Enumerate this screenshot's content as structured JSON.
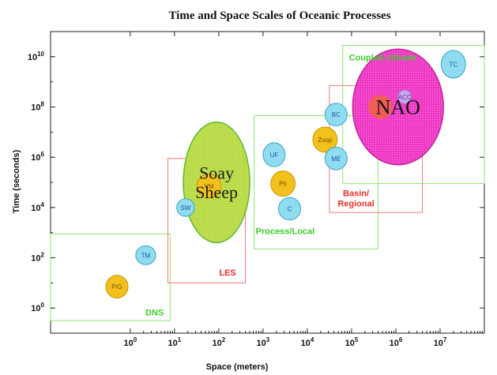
{
  "chart_data": {
    "type": "scatter",
    "title": "Time and Space Scales of Oceanic Processes",
    "xlabel": "Space (meters)",
    "ylabel": "Time (seconds)",
    "xscale": "log",
    "yscale": "log",
    "xlim_log10": [
      -1.8,
      8.0
    ],
    "ylim_log10": [
      -1.0,
      11.0
    ],
    "x_ticks": [
      {
        "exp": 0,
        "base": "10",
        "sup": "0"
      },
      {
        "exp": 1,
        "base": "10",
        "sup": "1"
      },
      {
        "exp": 2,
        "base": "10",
        "sup": "2"
      },
      {
        "exp": 3,
        "base": "10",
        "sup": "3"
      },
      {
        "exp": 4,
        "base": "10",
        "sup": "4"
      },
      {
        "exp": 5,
        "base": "10",
        "sup": "5"
      },
      {
        "exp": 6,
        "base": "10",
        "sup": "6"
      },
      {
        "exp": 7,
        "base": "10",
        "sup": "7"
      }
    ],
    "y_ticks": [
      {
        "exp": 0,
        "base": "10",
        "sup": "0"
      },
      {
        "exp": 2,
        "base": "10",
        "sup": "2"
      },
      {
        "exp": 4,
        "base": "10",
        "sup": "4"
      },
      {
        "exp": 6,
        "base": "10",
        "sup": "6"
      },
      {
        "exp": 8,
        "base": "10",
        "sup": "8"
      },
      {
        "exp": 10,
        "base": "10",
        "sup": "10"
      }
    ],
    "regions": [
      {
        "label": "DNS",
        "color": "#8fe36e",
        "x0": -1.8,
        "x1": 0.9,
        "y0": -0.5,
        "y1": 2.95,
        "label_x": 0.55,
        "label_y": -0.3
      },
      {
        "label": "LES",
        "color": "#f27a7a",
        "x0": 0.85,
        "x1": 2.6,
        "y0": 1.0,
        "y1": 5.95,
        "label_x": 2.2,
        "label_y": 1.3
      },
      {
        "label": "Process/Local",
        "color": "#8fe36e",
        "x0": 2.8,
        "x1": 5.6,
        "y0": 2.35,
        "y1": 7.65,
        "label_x": 3.5,
        "label_y": 2.95
      },
      {
        "label": "Basin/\nRegional",
        "color": "#f27a7a",
        "x0": 4.5,
        "x1": 6.6,
        "y0": 3.8,
        "y1": 8.85,
        "label_x": 5.1,
        "label_y": 4.45
      },
      {
        "label": "Coupled climate",
        "color": "#8fe36e",
        "x0": 4.8,
        "x1": 8.0,
        "y0": 4.95,
        "y1": 10.45,
        "label_x": 5.7,
        "label_y": 9.85
      }
    ],
    "processes": [
      {
        "label": "P/G",
        "x": -0.3,
        "y": 0.85,
        "w": 0.5,
        "h": 0.9,
        "color": "#f2c11c",
        "stroke": "#c99600",
        "text": "#7a4d00"
      },
      {
        "label": "TM",
        "x": 0.35,
        "y": 2.1,
        "w": 0.45,
        "h": 0.75,
        "color": "#8fdcf0",
        "stroke": "#3aa4c6",
        "text": "#1d55a8"
      },
      {
        "label": "SW",
        "x": 1.25,
        "y": 4.0,
        "w": 0.4,
        "h": 0.7,
        "color": "#8fdcf0",
        "stroke": "#3aa4c6",
        "text": "#1d55a8"
      },
      {
        "label": "VM",
        "x": 1.78,
        "y": 4.85,
        "w": 0.55,
        "h": 0.95,
        "color": "#f2c11c",
        "stroke": "#c99600",
        "text": "#7a4d00"
      },
      {
        "label": "UF",
        "x": 3.25,
        "y": 6.1,
        "w": 0.5,
        "h": 0.95,
        "color": "#8fdcf0",
        "stroke": "#3aa4c6",
        "text": "#1d55a8"
      },
      {
        "label": "Ph",
        "x": 3.45,
        "y": 4.95,
        "w": 0.55,
        "h": 1.0,
        "color": "#f2c11c",
        "stroke": "#c99600",
        "text": "#7a4d00"
      },
      {
        "label": "C",
        "x": 3.6,
        "y": 3.95,
        "w": 0.5,
        "h": 0.9,
        "color": "#8fdcf0",
        "stroke": "#3aa4c6",
        "text": "#1d55a8"
      },
      {
        "label": "Zoop",
        "x": 4.4,
        "y": 6.7,
        "w": 0.55,
        "h": 1.0,
        "color": "#f2c11c",
        "stroke": "#c99600",
        "text": "#7a4d00"
      },
      {
        "label": "BC",
        "x": 4.65,
        "y": 7.7,
        "w": 0.5,
        "h": 0.9,
        "color": "#8fdcf0",
        "stroke": "#3aa4c6",
        "text": "#1d55a8"
      },
      {
        "label": "ME",
        "x": 4.65,
        "y": 5.95,
        "w": 0.5,
        "h": 0.9,
        "color": "#8fdcf0",
        "stroke": "#3aa4c6",
        "text": "#1d55a8"
      },
      {
        "label": "TC",
        "x": 7.3,
        "y": 9.7,
        "w": 0.55,
        "h": 1.1,
        "color": "#8fdcf0",
        "stroke": "#3aa4c6",
        "text": "#1d55a8"
      },
      {
        "label": "ACC",
        "x": 6.2,
        "y": 8.4,
        "w": 0.3,
        "h": 0.55,
        "color": "#c9a6f0",
        "stroke": "#9a78c8",
        "text": "#5a3c90"
      }
    ],
    "highlights": [
      {
        "label": "Soay\nSheep",
        "x": 1.95,
        "y": 5.0,
        "w": 1.5,
        "h": 4.8,
        "fill": "#b5d93e",
        "stroke": "#57b52a",
        "text": "#1a1a1a",
        "font": 22
      },
      {
        "label": "NAO",
        "x": 6.05,
        "y": 8.0,
        "w": 2.05,
        "h": 4.6,
        "fill": "#ee2ec2",
        "stroke": "#c01a96",
        "text": "#111111",
        "font": 26
      }
    ],
    "nao_inner": {
      "x": 5.65,
      "y": 8.0,
      "w": 0.55,
      "h": 0.95,
      "color": "#f0604a"
    }
  }
}
